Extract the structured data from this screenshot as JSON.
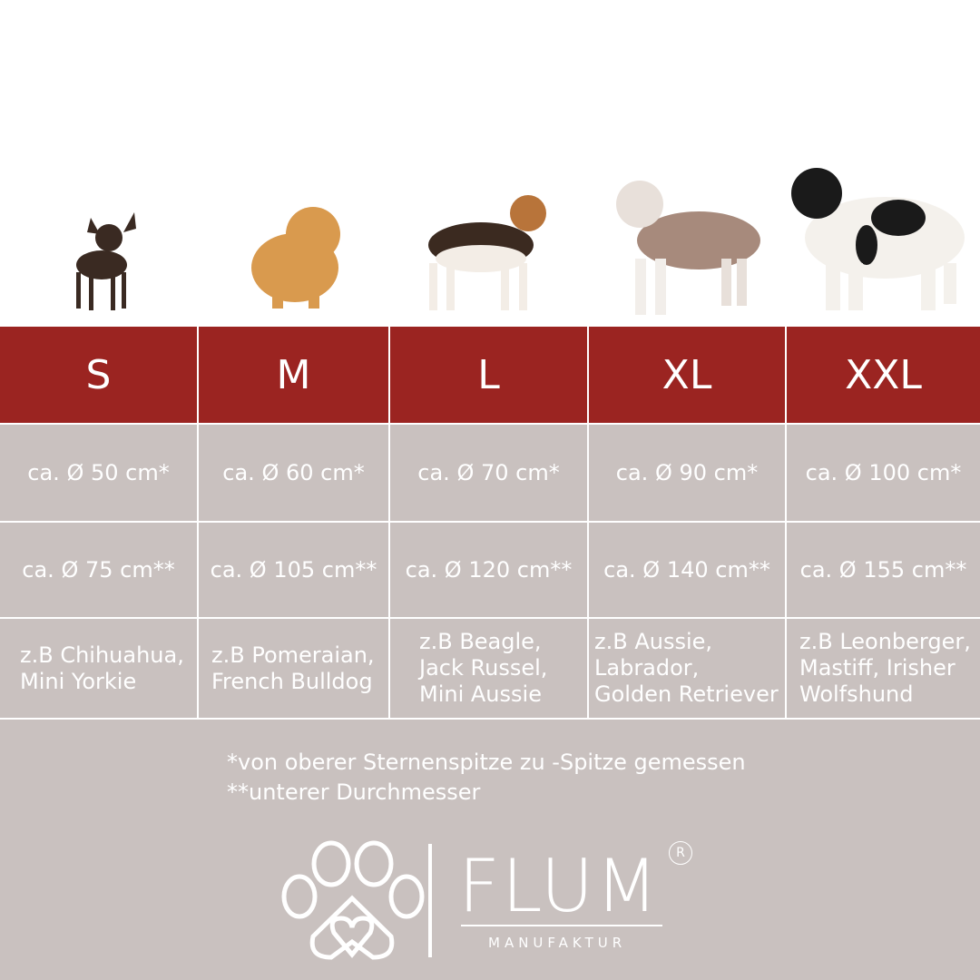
{
  "colors": {
    "header": "#9b2421",
    "cell": "#c9c1bf",
    "text": "#ffffff"
  },
  "sizes": [
    {
      "label": "S",
      "top_diameter": "ca. Ø 50 cm*",
      "bottom_diameter": "ca. Ø 75 cm**",
      "breeds": "z.B Chihuahua,\nMini Yorkie",
      "dog": "chihuahua"
    },
    {
      "label": "M",
      "top_diameter": "ca. Ø 60 cm*",
      "bottom_diameter": "ca. Ø 105 cm**",
      "breeds": "z.B Pomeraian,\nFrench Bulldog",
      "dog": "pomeranian"
    },
    {
      "label": "L",
      "top_diameter": "ca. Ø 70 cm*",
      "bottom_diameter": "ca. Ø 120 cm**",
      "breeds": "z.B Beagle,\nJack Russel,\nMini Aussie",
      "dog": "beagle"
    },
    {
      "label": "XL",
      "top_diameter": "ca. Ø 90 cm*",
      "bottom_diameter": "ca. Ø 140 cm**",
      "breeds": "z.B Aussie,\nLabrador,\nGolden Retriever",
      "dog": "australian-shepherd"
    },
    {
      "label": "XXL",
      "top_diameter": "ca. Ø 100 cm*",
      "bottom_diameter": "ca. Ø 155 cm**",
      "breeds": "z.B Leonberger,\nMastiff, Irisher\nWolfshund",
      "dog": "landseer"
    }
  ],
  "notes": [
    "*von oberer Sternenspitze zu -Spitze gemessen",
    "**unterer Durchmesser"
  ],
  "logo": {
    "brand": "FLUM",
    "sub": "MANUFAKTUR",
    "registered": "R",
    "icon": "paw-heart-icon"
  }
}
